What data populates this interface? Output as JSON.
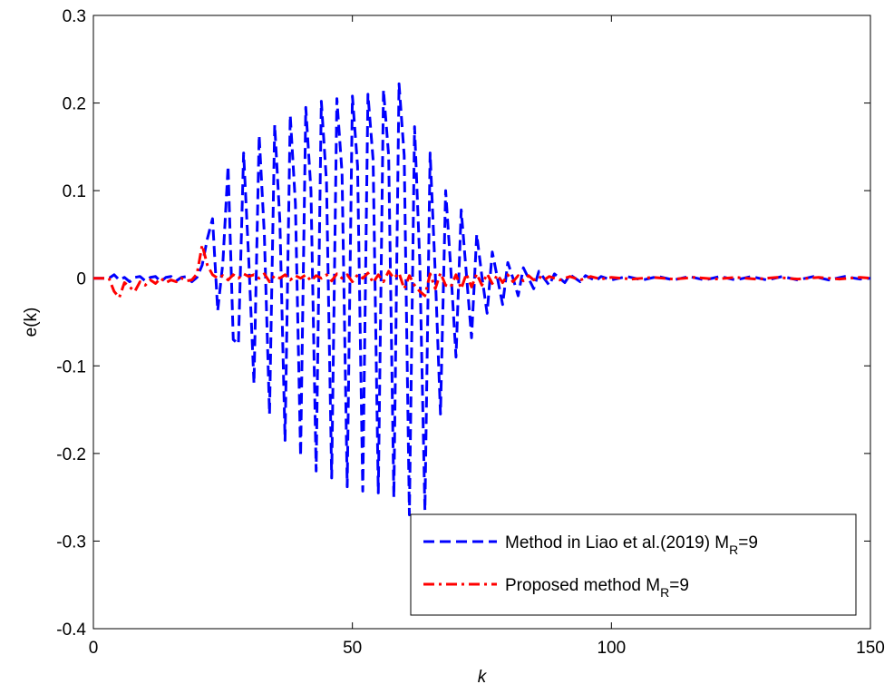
{
  "chart_data": {
    "type": "line",
    "xlabel": "k",
    "ylabel": "e(k)",
    "xlim": [
      0,
      150
    ],
    "ylim": [
      -0.4,
      0.3
    ],
    "xticks": [
      0,
      50,
      100,
      150
    ],
    "xtick_labels": [
      "0",
      "50",
      "100",
      "150"
    ],
    "yticks": [
      -0.4,
      -0.3,
      -0.2,
      -0.1,
      0,
      0.1,
      0.2,
      0.3
    ],
    "ytick_labels": [
      "-0.4",
      "-0.3",
      "-0.2",
      "-0.1",
      "0",
      "0.1",
      "0.2",
      "0.3"
    ],
    "grid": false,
    "legend_position": "bottom-right",
    "series": [
      {
        "name": "Method in Liao et al.(2019) M",
        "name_sub": "R",
        "name_suffix": "=9",
        "color": "#0000ff",
        "style": "dashed",
        "points": [
          [
            0,
            0
          ],
          [
            1,
            0
          ],
          [
            2,
            0
          ],
          [
            3,
            0
          ],
          [
            4,
            0.004
          ],
          [
            5,
            -0.002
          ],
          [
            6,
            0.001
          ],
          [
            7,
            -0.004
          ],
          [
            8,
            0.001
          ],
          [
            9,
            0.002
          ],
          [
            10,
            -0.003
          ],
          [
            11,
            0.001
          ],
          [
            12,
            0.002
          ],
          [
            13,
            -0.004
          ],
          [
            14,
            0.001
          ],
          [
            15,
            0.002
          ],
          [
            16,
            -0.003
          ],
          [
            17,
            0.001
          ],
          [
            18,
            0.002
          ],
          [
            19,
            -0.004
          ],
          [
            20,
            0.001
          ],
          [
            21,
            0.015
          ],
          [
            22,
            0.045
          ],
          [
            23,
            0.068
          ],
          [
            24,
            -0.037
          ],
          [
            25,
            0.018
          ],
          [
            26,
            0.128
          ],
          [
            27,
            -0.07
          ],
          [
            28,
            -0.075
          ],
          [
            29,
            0.143
          ],
          [
            30,
            0.02
          ],
          [
            31,
            -0.12
          ],
          [
            32,
            0.163
          ],
          [
            33,
            0.05
          ],
          [
            34,
            -0.155
          ],
          [
            35,
            0.175
          ],
          [
            36,
            0.065
          ],
          [
            37,
            -0.185
          ],
          [
            38,
            0.186
          ],
          [
            39,
            0.085
          ],
          [
            40,
            -0.203
          ],
          [
            41,
            0.195
          ],
          [
            42,
            0.1
          ],
          [
            43,
            -0.22
          ],
          [
            44,
            0.202
          ],
          [
            45,
            0.11
          ],
          [
            46,
            -0.228
          ],
          [
            47,
            0.205
          ],
          [
            48,
            0.12
          ],
          [
            49,
            -0.238
          ],
          [
            50,
            0.208
          ],
          [
            51,
            0.128
          ],
          [
            52,
            -0.243
          ],
          [
            53,
            0.21
          ],
          [
            54,
            0.135
          ],
          [
            55,
            -0.245
          ],
          [
            56,
            0.215
          ],
          [
            57,
            0.14
          ],
          [
            58,
            -0.25
          ],
          [
            59,
            0.222
          ],
          [
            60,
            0.14
          ],
          [
            61,
            -0.27
          ],
          [
            62,
            0.173
          ],
          [
            63,
            0.02
          ],
          [
            64,
            -0.265
          ],
          [
            65,
            0.143
          ],
          [
            66,
            0.005
          ],
          [
            67,
            -0.155
          ],
          [
            68,
            0.1
          ],
          [
            69,
            0.01
          ],
          [
            70,
            -0.09
          ],
          [
            71,
            0.078
          ],
          [
            72,
            0.005
          ],
          [
            73,
            -0.068
          ],
          [
            74,
            0.05
          ],
          [
            75,
            0.002
          ],
          [
            76,
            -0.04
          ],
          [
            77,
            0.03
          ],
          [
            78,
            0
          ],
          [
            79,
            -0.03
          ],
          [
            80,
            0.018
          ],
          [
            81,
            0
          ],
          [
            82,
            -0.02
          ],
          [
            83,
            0.012
          ],
          [
            84,
            0
          ],
          [
            85,
            -0.012
          ],
          [
            86,
            0.008
          ],
          [
            87,
            0
          ],
          [
            88,
            -0.008
          ],
          [
            89,
            0.005
          ],
          [
            90,
            0
          ],
          [
            91,
            -0.005
          ],
          [
            92,
            0.004
          ],
          [
            93,
            0
          ],
          [
            94,
            -0.004
          ],
          [
            95,
            0.003
          ],
          [
            96,
            0
          ],
          [
            97,
            -0.003
          ],
          [
            98,
            0.002
          ],
          [
            99,
            0
          ],
          [
            100,
            -0.002
          ],
          [
            103,
            0.002
          ],
          [
            106,
            -0.002
          ],
          [
            109,
            0.002
          ],
          [
            112,
            -0.002
          ],
          [
            115,
            0.002
          ],
          [
            118,
            -0.002
          ],
          [
            121,
            0.002
          ],
          [
            124,
            -0.002
          ],
          [
            127,
            0.002
          ],
          [
            130,
            -0.002
          ],
          [
            133,
            0.002
          ],
          [
            136,
            -0.002
          ],
          [
            139,
            0.002
          ],
          [
            142,
            -0.002
          ],
          [
            145,
            0.002
          ],
          [
            148,
            -0.001
          ],
          [
            150,
            0
          ]
        ]
      },
      {
        "name": "Proposed method M",
        "name_sub": "R",
        "name_suffix": "=9",
        "color": "#ff0000",
        "style": "dashdot",
        "points": [
          [
            0,
            0
          ],
          [
            1,
            0
          ],
          [
            2,
            0
          ],
          [
            3,
            0
          ],
          [
            4,
            -0.015
          ],
          [
            5,
            -0.022
          ],
          [
            6,
            -0.005
          ],
          [
            7,
            -0.01
          ],
          [
            8,
            -0.015
          ],
          [
            9,
            -0.004
          ],
          [
            10,
            -0.008
          ],
          [
            11,
            -0.002
          ],
          [
            12,
            -0.006
          ],
          [
            13,
            0
          ],
          [
            14,
            -0.005
          ],
          [
            15,
            -0.002
          ],
          [
            16,
            -0.004
          ],
          [
            17,
            0
          ],
          [
            18,
            -0.003
          ],
          [
            19,
            -0.002
          ],
          [
            20,
            0.005
          ],
          [
            21,
            0.038
          ],
          [
            22,
            0.015
          ],
          [
            23,
            0.004
          ],
          [
            24,
            0
          ],
          [
            25,
            0.003
          ],
          [
            26,
            -0.002
          ],
          [
            27,
            0.004
          ],
          [
            28,
            0
          ],
          [
            29,
            0.005
          ],
          [
            30,
            0.002
          ],
          [
            31,
            0.004
          ],
          [
            32,
            0
          ],
          [
            33,
            0.005
          ],
          [
            34,
            -0.004
          ],
          [
            35,
            0.003
          ],
          [
            36,
            0
          ],
          [
            37,
            0.004
          ],
          [
            38,
            -0.002
          ],
          [
            39,
            0.003
          ],
          [
            40,
            0
          ],
          [
            41,
            0.004
          ],
          [
            42,
            -0.003
          ],
          [
            43,
            0.003
          ],
          [
            44,
            0
          ],
          [
            45,
            0.004
          ],
          [
            46,
            -0.003
          ],
          [
            47,
            0.005
          ],
          [
            48,
            0
          ],
          [
            49,
            0.004
          ],
          [
            50,
            -0.004
          ],
          [
            51,
            0.004
          ],
          [
            52,
            0
          ],
          [
            53,
            0.006
          ],
          [
            54,
            -0.005
          ],
          [
            55,
            0.004
          ],
          [
            56,
            -0.004
          ],
          [
            57,
            0.008
          ],
          [
            58,
            0
          ],
          [
            59,
            0.006
          ],
          [
            60,
            -0.012
          ],
          [
            61,
            0.003
          ],
          [
            62,
            -0.008
          ],
          [
            63,
            -0.015
          ],
          [
            64,
            -0.02
          ],
          [
            65,
            0.005
          ],
          [
            66,
            -0.012
          ],
          [
            67,
            0.006
          ],
          [
            68,
            -0.008
          ],
          [
            69,
            -0.01
          ],
          [
            70,
            0.004
          ],
          [
            71,
            -0.012
          ],
          [
            72,
            0.005
          ],
          [
            73,
            -0.01
          ],
          [
            74,
            0.005
          ],
          [
            75,
            -0.008
          ],
          [
            76,
            0.005
          ],
          [
            77,
            -0.006
          ],
          [
            78,
            0.004
          ],
          [
            79,
            -0.005
          ],
          [
            80,
            0.004
          ],
          [
            81,
            -0.004
          ],
          [
            82,
            0.003
          ],
          [
            83,
            -0.003
          ],
          [
            84,
            0.003
          ],
          [
            85,
            -0.002
          ],
          [
            86,
            0.002
          ],
          [
            87,
            -0.002
          ],
          [
            88,
            0.002
          ],
          [
            90,
            -0.002
          ],
          [
            92,
            0.002
          ],
          [
            94,
            -0.002
          ],
          [
            96,
            0.002
          ],
          [
            98,
            -0.001
          ],
          [
            100,
            0.001
          ],
          [
            104,
            -0.001
          ],
          [
            108,
            0.001
          ],
          [
            112,
            -0.001
          ],
          [
            116,
            0.001
          ],
          [
            120,
            -0.001
          ],
          [
            124,
            0.001
          ],
          [
            128,
            -0.001
          ],
          [
            132,
            0.001
          ],
          [
            136,
            -0.001
          ],
          [
            140,
            0.001
          ],
          [
            144,
            -0.001
          ],
          [
            148,
            0.001
          ],
          [
            150,
            0
          ]
        ]
      }
    ]
  }
}
